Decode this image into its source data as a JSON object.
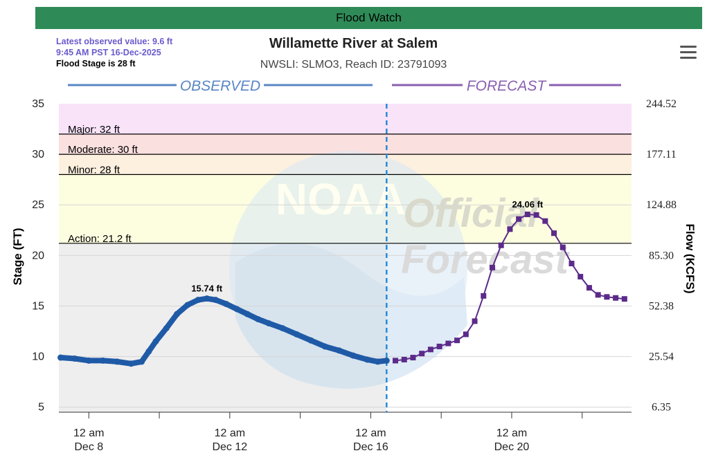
{
  "banner": "Flood Watch",
  "observed_info": {
    "latest": "Latest observed value: 9.6 ft",
    "time": "9:45 AM PST 16-Dec-2025",
    "flood_stage": "Flood Stage is 28 ft"
  },
  "header": {
    "title": "Willamette River at Salem",
    "subtitle": "NWSLI: SLMO3, Reach ID: 23791093"
  },
  "watermark": {
    "noaa": "NOAA",
    "official": "Official",
    "forecast": "Forecast"
  },
  "colors": {
    "banner": "#2e8b57",
    "observed": "#1f5aa6",
    "forecast": "#5b2a8a",
    "major": "#f8e3f9",
    "moderate": "#fbe0e0",
    "minor": "#fdf0df",
    "action": "#fdfde0",
    "normal": "#eeeeee"
  },
  "chart_data": {
    "type": "line",
    "title": "Willamette River at Salem",
    "segment_labels": {
      "observed": "OBSERVED",
      "forecast": "FORECAST"
    },
    "ylabel": "Stage (FT)",
    "y2label": "Flow (KCFS)",
    "ylim": [
      4.5,
      35
    ],
    "y_ticks": [
      5,
      10,
      15,
      20,
      25,
      30,
      35
    ],
    "y2_ticks": [
      {
        "stage": 5,
        "label": "6.35"
      },
      {
        "stage": 10,
        "label": "25.54"
      },
      {
        "stage": 15,
        "label": "52.38"
      },
      {
        "stage": 20,
        "label": "85.30"
      },
      {
        "stage": 25,
        "label": "124.88"
      },
      {
        "stage": 30,
        "label": "177.11"
      },
      {
        "stage": 35,
        "label": "244.52"
      }
    ],
    "xlim_days": [
      7.15,
      23.4
    ],
    "x_ticks": [
      {
        "day": 8,
        "line1": "12 am",
        "line2": "Dec 8"
      },
      {
        "day": 12,
        "line1": "12 am",
        "line2": "Dec 12"
      },
      {
        "day": 16,
        "line1": "12 am",
        "line2": "Dec 16"
      },
      {
        "day": 20,
        "line1": "12 am",
        "line2": "Dec 20"
      }
    ],
    "minor_x_ticks": [
      10,
      14,
      18,
      22
    ],
    "now_day": 16.45,
    "thresholds": [
      {
        "name": "major",
        "label": "Major: 32 ft",
        "value": 32
      },
      {
        "name": "moderate",
        "label": "Moderate: 30 ft",
        "value": 30
      },
      {
        "name": "minor",
        "label": "Minor: 28 ft",
        "value": 28
      },
      {
        "name": "action",
        "label": "Action: 21.2 ft",
        "value": 21.2
      }
    ],
    "series": [
      {
        "name": "Observed",
        "points": [
          [
            7.2,
            9.9
          ],
          [
            7.6,
            9.8
          ],
          [
            8.0,
            9.6
          ],
          [
            8.4,
            9.6
          ],
          [
            8.8,
            9.5
          ],
          [
            9.2,
            9.3
          ],
          [
            9.5,
            9.5
          ],
          [
            9.7,
            10.5
          ],
          [
            9.9,
            11.5
          ],
          [
            10.2,
            12.8
          ],
          [
            10.5,
            14.2
          ],
          [
            10.8,
            15.1
          ],
          [
            11.1,
            15.6
          ],
          [
            11.35,
            15.74
          ],
          [
            11.6,
            15.6
          ],
          [
            11.9,
            15.2
          ],
          [
            12.2,
            14.7
          ],
          [
            12.5,
            14.2
          ],
          [
            12.8,
            13.7
          ],
          [
            13.1,
            13.3
          ],
          [
            13.5,
            12.8
          ],
          [
            13.9,
            12.2
          ],
          [
            14.3,
            11.6
          ],
          [
            14.7,
            11.0
          ],
          [
            15.1,
            10.6
          ],
          [
            15.5,
            10.1
          ],
          [
            15.9,
            9.7
          ],
          [
            16.2,
            9.5
          ],
          [
            16.45,
            9.6
          ]
        ],
        "peak_label": "15.74 ft"
      },
      {
        "name": "Forecast",
        "points": [
          [
            16.7,
            9.6
          ],
          [
            16.95,
            9.7
          ],
          [
            17.2,
            9.9
          ],
          [
            17.45,
            10.3
          ],
          [
            17.7,
            10.7
          ],
          [
            17.95,
            11.0
          ],
          [
            18.2,
            11.3
          ],
          [
            18.45,
            11.6
          ],
          [
            18.7,
            12.2
          ],
          [
            18.95,
            13.5
          ],
          [
            19.2,
            16.0
          ],
          [
            19.45,
            18.8
          ],
          [
            19.7,
            21.0
          ],
          [
            19.95,
            22.6
          ],
          [
            20.2,
            23.6
          ],
          [
            20.45,
            24.06
          ],
          [
            20.7,
            24.0
          ],
          [
            20.95,
            23.4
          ],
          [
            21.2,
            22.2
          ],
          [
            21.45,
            20.8
          ],
          [
            21.7,
            19.2
          ],
          [
            21.95,
            17.9
          ],
          [
            22.2,
            16.8
          ],
          [
            22.45,
            16.1
          ],
          [
            22.7,
            15.9
          ],
          [
            22.95,
            15.8
          ],
          [
            23.2,
            15.7
          ]
        ],
        "peak_label": "24.06 ft"
      }
    ]
  }
}
